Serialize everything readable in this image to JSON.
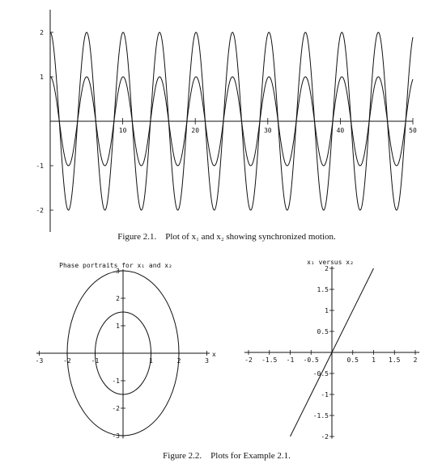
{
  "figure_1": {
    "caption": "Figure 2.1.    Plot of x₁ and x₂ showing synchronized motion."
  },
  "figure_2": {
    "caption": "Figure 2.2.    Plots for Example 2.1."
  },
  "chart_data": [
    {
      "type": "line",
      "title": "",
      "xlabel": "",
      "ylabel": "",
      "xlim": [
        0,
        50
      ],
      "ylim": [
        -2.3,
        2.3
      ],
      "grid": false,
      "x_ticks": [
        10,
        20,
        30,
        40,
        50
      ],
      "y_ticks": [
        -2,
        -1,
        1,
        2
      ],
      "x_tick_labels": [
        "10",
        "20",
        "30",
        "40",
        "50"
      ],
      "y_tick_labels": [
        "-2",
        "-1",
        "1",
        "2"
      ],
      "series": [
        {
          "function": "2*cos(1.25*t)",
          "amplitude": 2,
          "angular_frequency": 1.25
        },
        {
          "function": "cos(1.25*t)",
          "amplitude": 1,
          "angular_frequency": 1.25
        }
      ]
    },
    {
      "type": "line",
      "title": "Phase portraits for x₁ and x₂",
      "xlabel": "x",
      "ylabel": "",
      "xlim": [
        -3,
        3
      ],
      "ylim": [
        -3,
        3
      ],
      "grid": false,
      "x_ticks": [
        -3,
        -2,
        -1,
        1,
        2,
        3
      ],
      "y_ticks": [
        -3,
        -2,
        -1,
        1,
        2,
        3
      ],
      "x_tick_labels": [
        "-3",
        "-2",
        "-1",
        "1",
        "2",
        "3"
      ],
      "y_tick_labels": [
        "-3",
        "-2",
        "-1",
        "1",
        "2",
        "3"
      ],
      "series": [
        {
          "shape": "ellipse",
          "x_radius": 2,
          "y_radius": 3
        },
        {
          "shape": "ellipse",
          "x_radius": 1,
          "y_radius": 1.5
        }
      ]
    },
    {
      "type": "line",
      "title": "x₁ versus x₂",
      "xlabel": "",
      "ylabel": "",
      "xlim": [
        -2,
        2
      ],
      "ylim": [
        -2,
        2
      ],
      "grid": false,
      "x_ticks": [
        -2,
        -1.5,
        -1,
        -0.5,
        0.5,
        1,
        1.5,
        2
      ],
      "y_ticks": [
        -2,
        -1.5,
        -1,
        -0.5,
        0.5,
        1,
        1.5,
        2
      ],
      "x_tick_labels": [
        "-2",
        "-1.5",
        "-1",
        "-0.5",
        "0.5",
        "1",
        "1.5",
        "2"
      ],
      "y_tick_labels": [
        "-2",
        "-1.5",
        "-1",
        "-0.5",
        "0.5",
        "1",
        "1.5",
        "2"
      ],
      "series": [
        {
          "x": [
            -1,
            1
          ],
          "y": [
            -2,
            2
          ]
        }
      ]
    }
  ]
}
